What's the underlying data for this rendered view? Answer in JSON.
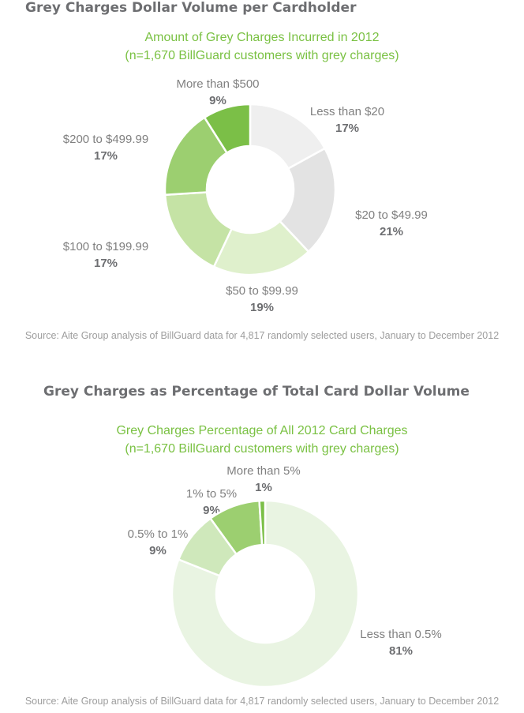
{
  "chart_data": [
    {
      "type": "pie",
      "section_title": "Grey Charges Dollar Volume per Cardholder",
      "title": "Amount of Grey Charges Incurred in 2012",
      "subtitle": "(n=1,670 BillGuard customers with grey charges)",
      "categories": [
        "Less than $20",
        "$20 to $49.99",
        "$50 to $99.99",
        "$100 to $199.99",
        "$200 to $499.99",
        "More than $500"
      ],
      "values": [
        17,
        21,
        19,
        17,
        17,
        9
      ],
      "value_labels": [
        "17%",
        "21%",
        "19%",
        "17%",
        "17%",
        "9%"
      ],
      "colors": [
        "#efefef",
        "#e3e3e3",
        "#dff0cc",
        "#c5e3a5",
        "#9ccf70",
        "#7bbf47"
      ],
      "source": "Source: Aite Group analysis of BillGuard data for 4,817 randomly selected users, January to December 2012"
    },
    {
      "type": "pie",
      "section_title": "Grey Charges as Percentage of Total Card Dollar Volume",
      "title": "Grey Charges Percentage of All 2012 Card Charges",
      "subtitle": "(n=1,670 BillGuard customers with grey charges)",
      "categories": [
        "Less than 0.5%",
        "0.5% to 1%",
        "1% to 5%",
        "More than 5%"
      ],
      "values": [
        81,
        9,
        9,
        1
      ],
      "value_labels": [
        "81%",
        "9%",
        "9%",
        "1%"
      ],
      "colors": [
        "#e9f4e2",
        "#cfe8bb",
        "#9ccf70",
        "#7bbf47"
      ],
      "source": "Source: Aite Group analysis of BillGuard data for 4,817 randomly selected users, January to December 2012"
    }
  ]
}
